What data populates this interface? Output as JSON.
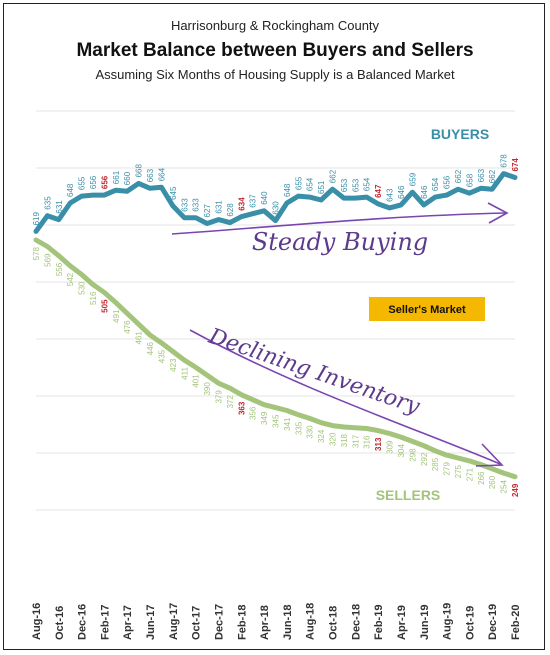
{
  "chart_data": {
    "type": "line",
    "title": "Market Balance between Buyers and Sellers",
    "supertitle": "Harrisonburg & Rockingham County",
    "subtitle": "Assuming Six Months of Housing Supply is a Balanced Market",
    "x": [
      "Aug-16",
      "Sep-16",
      "Oct-16",
      "Nov-16",
      "Dec-16",
      "Jan-17",
      "Feb-17",
      "Mar-17",
      "Apr-17",
      "May-17",
      "Jun-17",
      "Jul-17",
      "Aug-17",
      "Sep-17",
      "Oct-17",
      "Nov-17",
      "Dec-17",
      "Jan-18",
      "Feb-18",
      "Mar-18",
      "Apr-18",
      "May-18",
      "Jun-18",
      "Jul-18",
      "Aug-18",
      "Sep-18",
      "Oct-18",
      "Nov-18",
      "Dec-18",
      "Jan-19",
      "Feb-19",
      "Mar-19",
      "Apr-19",
      "May-19",
      "Jun-19",
      "Jul-19",
      "Aug-19",
      "Sep-19",
      "Oct-19",
      "Nov-19",
      "Dec-19",
      "Jan-20",
      "Feb-20"
    ],
    "x_tick_labels": [
      "Aug-16",
      "Oct-16",
      "Dec-16",
      "Feb-17",
      "Apr-17",
      "Jun-17",
      "Aug-17",
      "Oct-17",
      "Dec-17",
      "Feb-18",
      "Apr-18",
      "Jun-18",
      "Aug-18",
      "Oct-18",
      "Dec-18",
      "Feb-19",
      "Apr-19",
      "Jun-19",
      "Aug-19",
      "Oct-19",
      "Dec-19",
      "Feb-20"
    ],
    "series": [
      {
        "name": "BUYERS",
        "color": "#3a8fa8",
        "values": [
          619,
          635,
          631,
          648,
          655,
          656,
          656,
          661,
          660,
          668,
          663,
          664,
          645,
          633,
          633,
          627,
          631,
          628,
          634,
          637,
          640,
          630,
          648,
          655,
          654,
          651,
          662,
          653,
          653,
          654,
          647,
          643,
          646,
          659,
          646,
          654,
          656,
          662,
          658,
          663,
          662,
          678,
          674
        ]
      },
      {
        "name": "SELLERS",
        "color": "#a3c47a",
        "values": [
          578,
          569,
          556,
          542,
          530,
          516,
          505,
          491,
          476,
          461,
          446,
          435,
          423,
          411,
          401,
          390,
          379,
          372,
          363,
          356,
          349,
          345,
          341,
          335,
          330,
          324,
          320,
          318,
          317,
          316,
          313,
          309,
          304,
          298,
          292,
          285,
          279,
          275,
          271,
          266,
          260,
          254,
          249
        ]
      }
    ],
    "highlight_indices": [
      6,
      18,
      30,
      42
    ],
    "highlight_color": "#c1272d",
    "annotations": {
      "steady": "Steady Buying",
      "declining": "Declining Inventory",
      "market_box": "Seller's Market",
      "market_box_color": "#f5b800"
    },
    "grid": true,
    "arrow_color": "#7a45b0"
  }
}
